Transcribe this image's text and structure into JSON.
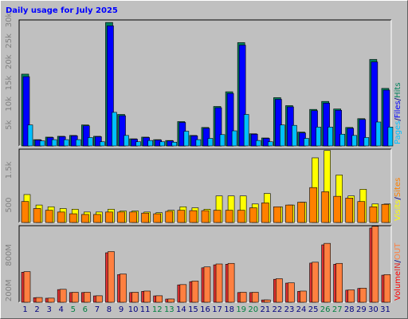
{
  "title": "Daily usage for July 2025",
  "legend_separator": "/",
  "chart_data": [
    {
      "type": "bar",
      "ylim": [
        0,
        30000
      ],
      "yticks": [
        {
          "value": 5000,
          "label": "5k"
        },
        {
          "value": 10000,
          "label": "10k"
        },
        {
          "value": 15000,
          "label": "15k"
        },
        {
          "value": 20000,
          "label": "20k"
        },
        {
          "value": 25000,
          "label": "25k"
        },
        {
          "value": 30000,
          "label": "30k"
        }
      ],
      "series": [
        {
          "name": "Hits",
          "color": "#00805c",
          "values": [
            17100,
            1500,
            2100,
            2300,
            2500,
            5000,
            2300,
            29400,
            7500,
            1700,
            2100,
            1500,
            1300,
            5800,
            2500,
            4400,
            9400,
            12900,
            24600,
            2900,
            1900,
            11500,
            9600,
            3300,
            8700,
            10600,
            8800,
            4400,
            6500,
            20600,
            13700
          ]
        },
        {
          "name": "Files",
          "color": "#0000ff",
          "values": [
            16500,
            1400,
            2000,
            2200,
            2400,
            4800,
            2200,
            28600,
            7200,
            1600,
            2000,
            1400,
            1200,
            5600,
            2400,
            4200,
            9100,
            12500,
            24000,
            2800,
            1800,
            11100,
            9300,
            3100,
            8400,
            10200,
            8500,
            4200,
            6300,
            20000,
            13300
          ]
        },
        {
          "name": "Pages",
          "color": "#00c0ff",
          "values": [
            5000,
            1200,
            1500,
            1500,
            1500,
            2000,
            1000,
            8000,
            2500,
            1000,
            1300,
            1000,
            900,
            3500,
            1500,
            1800,
            2700,
            3600,
            7500,
            1300,
            1000,
            5000,
            4900,
            1800,
            4500,
            4500,
            2800,
            2500,
            2000,
            5700,
            4500
          ]
        }
      ]
    },
    {
      "type": "bar",
      "ylim": [
        0,
        2100
      ],
      "yticks": [
        {
          "value": 500,
          "label": "500"
        },
        {
          "value": 1500,
          "label": "1.5k"
        }
      ],
      "series": [
        {
          "name": "Visits",
          "color": "#ffff00",
          "values": [
            800,
            500,
            450,
            400,
            380,
            300,
            300,
            380,
            330,
            330,
            300,
            280,
            350,
            450,
            420,
            380,
            760,
            760,
            760,
            530,
            830,
            450,
            500,
            580,
            1850,
            2060,
            1360,
            760,
            950,
            530,
            530
          ]
        },
        {
          "name": "Sites",
          "color": "#ff8000",
          "values": [
            600,
            400,
            350,
            300,
            250,
            230,
            230,
            300,
            300,
            300,
            270,
            250,
            320,
            350,
            340,
            340,
            350,
            350,
            350,
            420,
            560,
            450,
            500,
            580,
            1000,
            880,
            750,
            700,
            600,
            450,
            520
          ]
        }
      ]
    },
    {
      "type": "bar",
      "label": "Volume",
      "ylim": [
        0,
        1300
      ],
      "yticks": [
        {
          "value": 200,
          "label": "200M"
        },
        {
          "value": 800,
          "label": "800M"
        }
      ],
      "categories": [
        "1",
        "2",
        "3",
        "4",
        "5",
        "6",
        "7",
        "8",
        "9",
        "10",
        "11",
        "12",
        "13",
        "14",
        "15",
        "16",
        "17",
        "18",
        "19",
        "20",
        "21",
        "22",
        "23",
        "24",
        "25",
        "26",
        "27",
        "28",
        "29",
        "30",
        "31"
      ],
      "category_colors": [
        "#000080",
        "#000080",
        "#000080",
        "#000080",
        "#008040",
        "#008040",
        "#000080",
        "#000080",
        "#000080",
        "#000080",
        "#000080",
        "#008040",
        "#008040",
        "#000080",
        "#000080",
        "#000080",
        "#000080",
        "#000080",
        "#008040",
        "#008040",
        "#000080",
        "#000080",
        "#000080",
        "#000080",
        "#000080",
        "#008040",
        "#008040",
        "#000080",
        "#000080",
        "#000080",
        "#000080"
      ],
      "label_color": "#ff0000",
      "series": [
        {
          "name": "IN",
          "color": "#e03030",
          "values": [
            510,
            78,
            68,
            215,
            165,
            165,
            108,
            840,
            470,
            165,
            185,
            108,
            54,
            295,
            350,
            585,
            635,
            645,
            165,
            165,
            39,
            390,
            325,
            185,
            665,
            975,
            645,
            205,
            235,
            1260,
            460
          ]
        },
        {
          "name": "OUT",
          "color": "#ff8040",
          "values": [
            520,
            80,
            70,
            220,
            170,
            170,
            110,
            860,
            480,
            170,
            190,
            110,
            55,
            300,
            360,
            600,
            650,
            660,
            170,
            170,
            40,
            400,
            330,
            190,
            680,
            1000,
            660,
            210,
            240,
            1290,
            470
          ]
        }
      ]
    }
  ]
}
